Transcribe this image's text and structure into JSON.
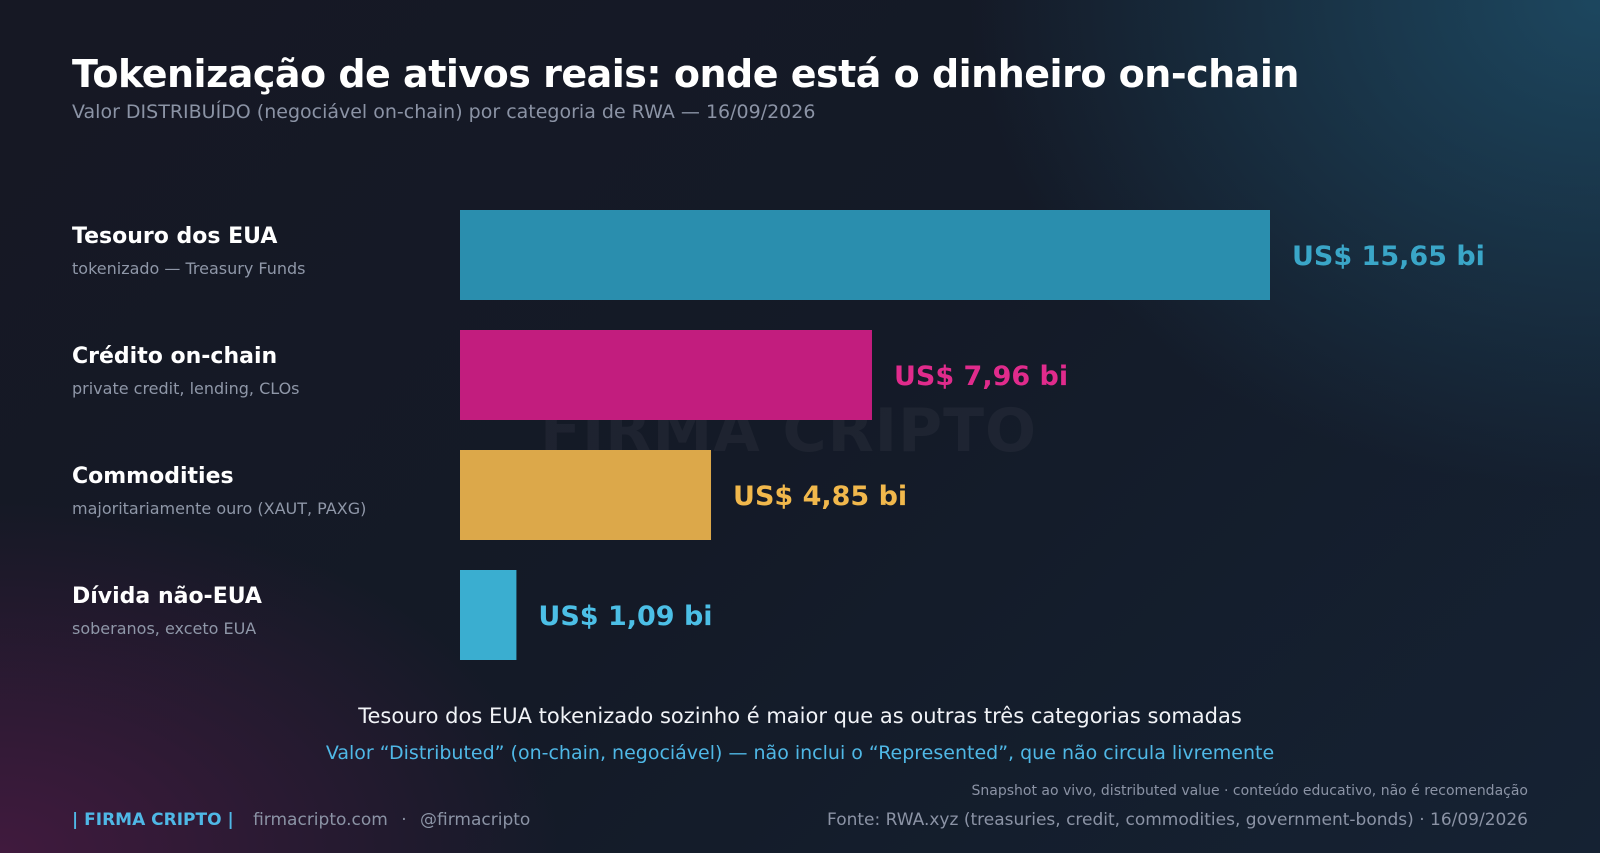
{
  "header": {
    "title": "Tokenização de ativos reais: onde está o dinheiro on-chain",
    "subtitle": "Valor DISTRIBUÍDO (negociável on-chain) por categoria de RWA — 16/09/2026"
  },
  "watermark": "FIRMA CRIPTO",
  "chart_data": {
    "type": "bar",
    "orientation": "horizontal",
    "categories": [
      "Tesouro dos EUA",
      "Crédito on-chain",
      "Commodities",
      "Dívida não-EUA"
    ],
    "descriptions": [
      "tokenizado — Treasury Funds",
      "private credit, lending, CLOs",
      "majoritariamente ouro (XAUT, PAXG)",
      "soberanos, exceto EUA"
    ],
    "values": [
      15.65,
      7.96,
      4.85,
      1.09
    ],
    "value_labels": [
      "US$ 15,65 bi",
      "US$ 7,96 bi",
      "US$ 4,85 bi",
      "US$ 1,09 bi"
    ],
    "colors": [
      "#2a8eae",
      "#c21d7e",
      "#dca84a",
      "#3aaed0"
    ],
    "label_colors": [
      "#3aa6c8",
      "#e02b8c",
      "#f1b84c",
      "#4cbfe6"
    ],
    "xlim": [
      0,
      15.65
    ],
    "grid": false,
    "legend": "none"
  },
  "callout": {
    "main": "Tesouro dos EUA tokenizado sozinho é maior que as outras três categorias somadas",
    "sub": "Valor “Distributed” (on-chain, negociável) — não inclui o “Represented”, que não circula livremente"
  },
  "footer": {
    "brand": "| FIRMA CRIPTO |",
    "site": "firmacripto.com",
    "separator": "·",
    "handle": "@firmacripto",
    "note": "Snapshot ao vivo, distributed value · conteúdo educativo, não é recomendação",
    "source": "Fonte: RWA.xyz (treasuries, credit, commodities, government-bonds)  ·  16/09/2026"
  }
}
